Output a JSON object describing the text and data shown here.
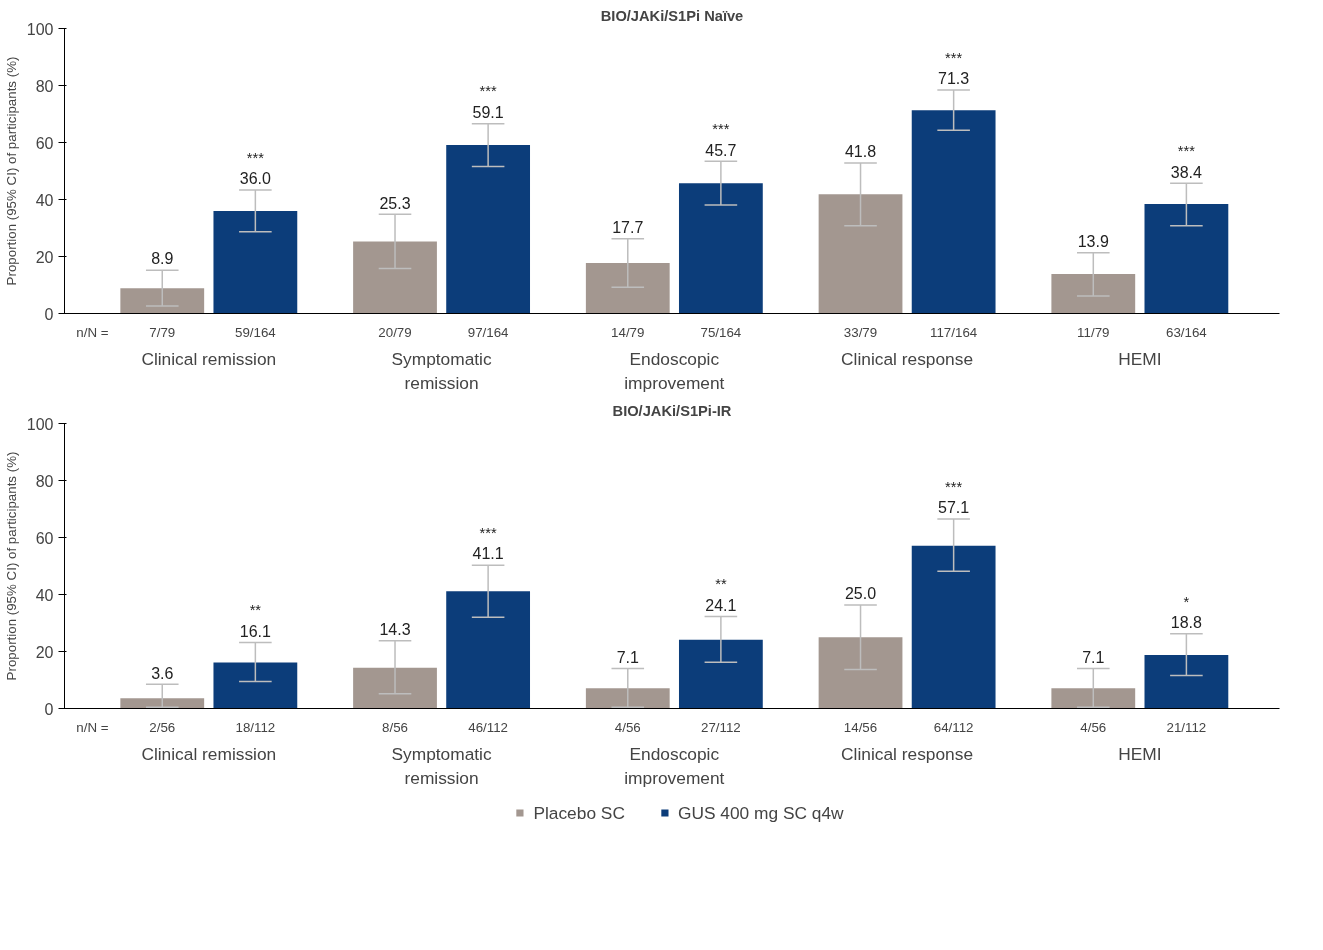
{
  "chart_data": [
    {
      "type": "bar",
      "title": "BIO/JAKi/S1Pi Naïve",
      "ylabel": "Proportion (95% CI) of participants (%)",
      "categories": [
        "Clinical remission",
        "Symptomatic remission",
        "Endoscopic improvement",
        "Clinical response",
        "HEMI"
      ],
      "series": [
        {
          "color": "#a39790",
          "values": [
            8.9,
            25.3,
            17.7,
            41.8,
            13.9
          ],
          "value_labels": [
            "8.9",
            "25.3",
            "17.7",
            "41.8",
            "13.9"
          ],
          "errors": [
            [
              2.6,
              15.2
            ],
            [
              15.8,
              34.8
            ],
            [
              9.2,
              26.2
            ],
            [
              30.8,
              52.8
            ],
            [
              6.1,
              21.3
            ]
          ]
        },
        {
          "color": "#0c3d7a",
          "values": [
            36.0,
            59.1,
            45.7,
            71.3,
            38.4
          ],
          "value_labels": [
            "36.0",
            "59.1",
            "45.7",
            "71.3",
            "38.4"
          ],
          "errors": [
            [
              28.7,
              43.3
            ],
            [
              51.6,
              66.6
            ],
            [
              38.1,
              53.4
            ],
            [
              64.3,
              78.4
            ],
            [
              30.8,
              45.7
            ]
          ]
        }
      ],
      "ylim": [
        0,
        100
      ],
      "yticks": [
        0,
        20,
        40,
        60,
        80,
        100
      ],
      "grid": false,
      "annotations": [
        "n/N =",
        "7/79",
        "59/164",
        "20/79",
        "97/164",
        "14/79",
        "75/164",
        "33/79",
        "117/164",
        "11/79",
        "63/164",
        "***",
        "***",
        "***",
        "***",
        "***"
      ]
    },
    {
      "type": "bar",
      "title": "BIO/JAKi/S1Pi-IR",
      "ylabel": "Proportion (95% CI) of participants (%)",
      "categories": [
        "Clinical remission",
        "Symptomatic remission",
        "Endoscopic improvement",
        "Clinical response",
        "HEMI"
      ],
      "series": [
        {
          "name": "Placebo SC",
          "color": "#a39790",
          "values": [
            3.6,
            14.3,
            7.1,
            25.0,
            7.1
          ],
          "value_labels": [
            "3.6",
            "14.3",
            "7.1",
            "25.0",
            "7.1"
          ],
          "errors": [
            [
              0.4,
              8.5
            ],
            [
              5.2,
              23.8
            ],
            [
              0.4,
              14.0
            ],
            [
              13.7,
              36.3
            ],
            [
              0.4,
              14.0
            ]
          ]
        },
        {
          "name": "GUS 400 mg SC q4w",
          "color": "#0c3d7a",
          "values": [
            16.1,
            41.1,
            24.1,
            57.1,
            18.8
          ],
          "value_labels": [
            "16.1",
            "41.1",
            "24.1",
            "57.1",
            "18.8"
          ],
          "errors": [
            [
              9.5,
              23.2
            ],
            [
              32.0,
              50.3
            ],
            [
              16.2,
              32.3
            ],
            [
              48.2,
              66.5
            ],
            [
              11.6,
              26.2
            ]
          ]
        }
      ],
      "ylim": [
        0,
        100
      ],
      "yticks": [
        0,
        20,
        40,
        60,
        80,
        100
      ],
      "grid": false,
      "legend": "bottom",
      "annotations": [
        "n/N =",
        "2/56",
        "18/112",
        "8/56",
        "46/112",
        "4/56",
        "27/112",
        "14/56",
        "64/112",
        "4/56",
        "21/112",
        "**",
        "***",
        "**",
        "***",
        "*"
      ]
    }
  ]
}
